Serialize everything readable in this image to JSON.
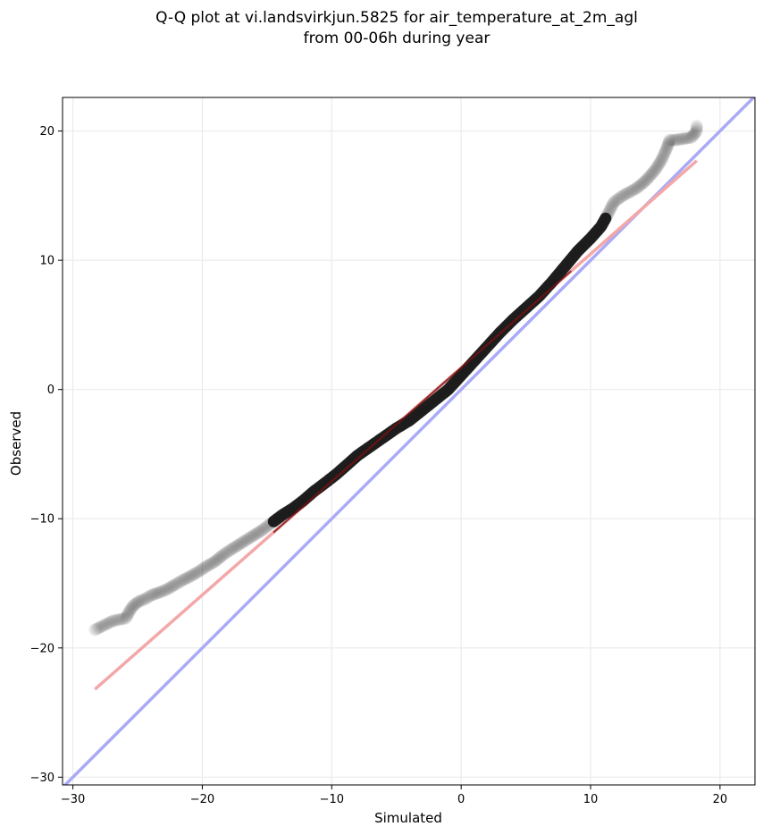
{
  "chart_data": {
    "type": "scatter",
    "title_lines": [
      "Q-Q plot at vi.landsvirkjun.5825 for air_temperature_at_2m_agl",
      "from 00-06h during year"
    ],
    "xlabel": "Simulated",
    "ylabel": "Observed",
    "xlim": [
      -30.8,
      22.7
    ],
    "ylim": [
      -30.6,
      22.6
    ],
    "xticks": [
      -30,
      -20,
      -10,
      0,
      10,
      20
    ],
    "xtick_labels": [
      "−30",
      "−20",
      "−10",
      "0",
      "10",
      "20"
    ],
    "yticks": [
      -30,
      -20,
      -10,
      0,
      10,
      20
    ],
    "ytick_labels": [
      "−30",
      "−20",
      "−10",
      "0",
      "10",
      "20"
    ],
    "grid": true,
    "series": [
      {
        "kind": "quantile-points",
        "color": "#000000",
        "points": [
          [
            -28.3,
            -18.6
          ],
          [
            -26.9,
            -17.9
          ],
          [
            -25.9,
            -17.7
          ],
          [
            -25.6,
            -17.1
          ],
          [
            -25.3,
            -16.7
          ],
          [
            -24.9,
            -16.4
          ],
          [
            -24.4,
            -16.2
          ],
          [
            -23.9,
            -15.9
          ],
          [
            -23.3,
            -15.7
          ],
          [
            -22.8,
            -15.5
          ],
          [
            -22.1,
            -15.1
          ],
          [
            -21.6,
            -14.8
          ],
          [
            -21.0,
            -14.5
          ],
          [
            -20.3,
            -14.1
          ],
          [
            -19.7,
            -13.7
          ],
          [
            -19.0,
            -13.3
          ],
          [
            -18.4,
            -12.8
          ],
          [
            -17.8,
            -12.4
          ],
          [
            -17.0,
            -11.9
          ],
          [
            -16.2,
            -11.4
          ],
          [
            -15.4,
            -10.9
          ],
          [
            -14.6,
            -10.3
          ],
          [
            -13.8,
            -9.7
          ],
          [
            -13.0,
            -9.2
          ],
          [
            -12.2,
            -8.6
          ],
          [
            -11.4,
            -7.9
          ],
          [
            -10.6,
            -7.3
          ],
          [
            -9.7,
            -6.6
          ],
          [
            -8.9,
            -5.9
          ],
          [
            -8.0,
            -5.1
          ],
          [
            -7.0,
            -4.4
          ],
          [
            -6.0,
            -3.7
          ],
          [
            -5.0,
            -3.0
          ],
          [
            -4.0,
            -2.4
          ],
          [
            -3.0,
            -1.6
          ],
          [
            -2.0,
            -0.8
          ],
          [
            -1.0,
            0.0
          ],
          [
            0.0,
            1.1
          ],
          [
            1.0,
            2.2
          ],
          [
            2.0,
            3.3
          ],
          [
            3.0,
            4.4
          ],
          [
            4.0,
            5.4
          ],
          [
            5.0,
            6.3
          ],
          [
            6.0,
            7.2
          ],
          [
            7.0,
            8.3
          ],
          [
            8.0,
            9.5
          ],
          [
            9.0,
            10.7
          ],
          [
            10.0,
            11.7
          ],
          [
            10.8,
            12.6
          ],
          [
            11.3,
            13.5
          ],
          [
            11.8,
            14.5
          ],
          [
            12.5,
            15.0
          ],
          [
            13.6,
            15.6
          ],
          [
            14.3,
            16.2
          ],
          [
            15.0,
            17.0
          ],
          [
            15.5,
            17.8
          ],
          [
            15.9,
            18.7
          ],
          [
            16.1,
            19.3
          ],
          [
            16.5,
            19.3
          ],
          [
            17.8,
            19.5
          ],
          [
            18.2,
            20.0
          ],
          [
            18.2,
            20.4
          ]
        ]
      },
      {
        "kind": "fit-line",
        "color": "#f4a7a7",
        "x": [
          -28.3,
          18.2
        ],
        "y": [
          -23.2,
          17.7
        ]
      },
      {
        "kind": "identity-line",
        "color": "#aaaaf6",
        "x": [
          -30.8,
          22.7
        ],
        "y": [
          -30.8,
          22.7
        ]
      }
    ]
  }
}
